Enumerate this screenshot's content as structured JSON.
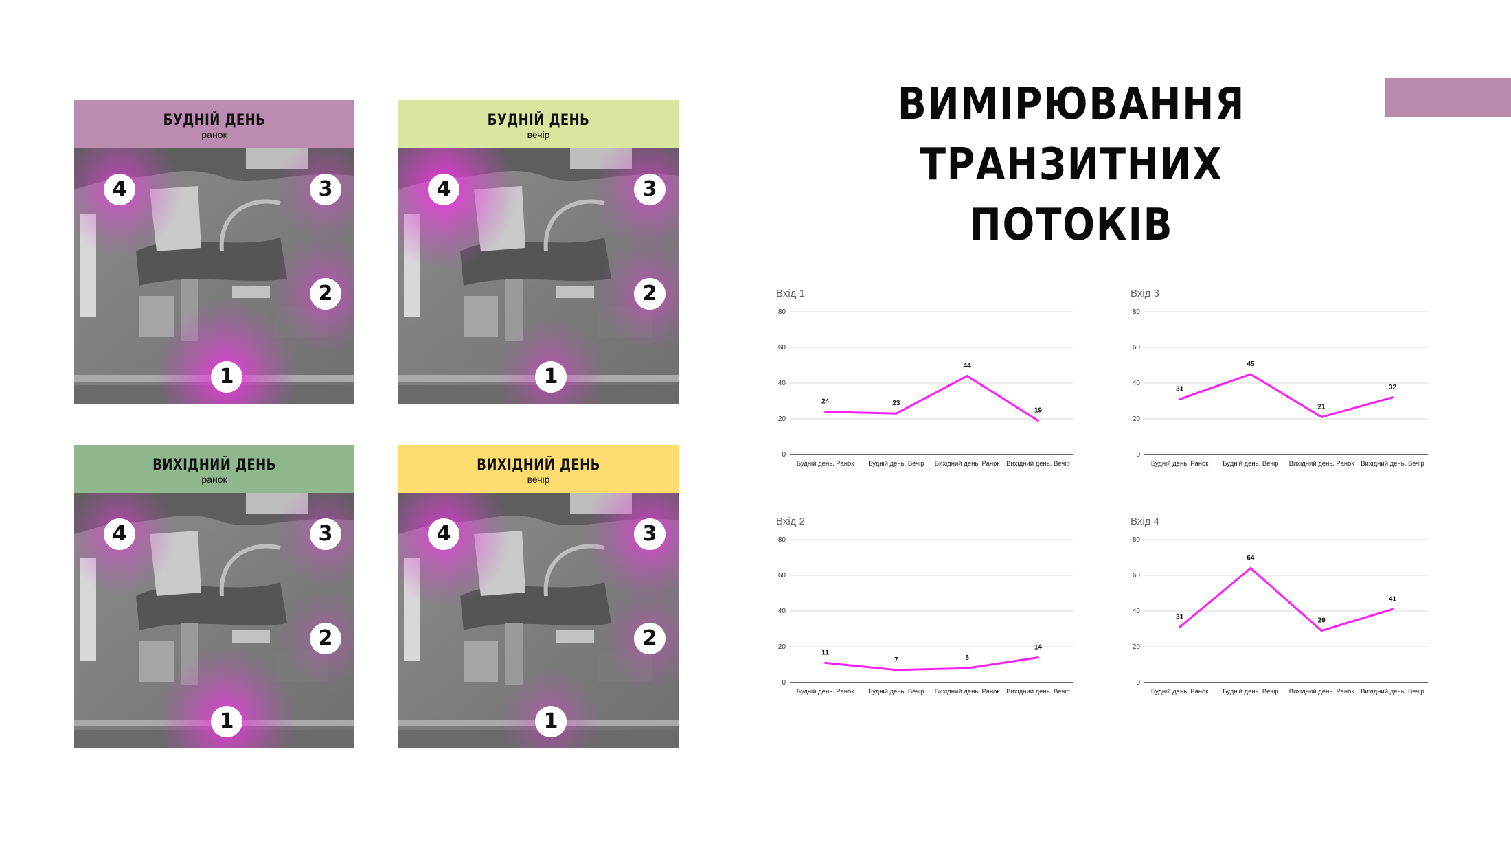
{
  "title": {
    "line1": "ВИМІРЮВАННЯ ТРАНЗИТНИХ",
    "line2": "ПОТОКІВ"
  },
  "colors": {
    "accent": "#b98aae",
    "line": "#ff1ff5",
    "grid": "#d9d9d9",
    "axis": "#333333"
  },
  "panels": [
    {
      "title": "БУДНІЙ ДЕНЬ",
      "sub": "ранок",
      "color": "#bb8bb2",
      "markers": [
        "1",
        "2",
        "3",
        "4"
      ]
    },
    {
      "title": "БУДНІЙ ДЕНЬ",
      "sub": "вечір",
      "color": "#d8e6a0",
      "markers": [
        "1",
        "2",
        "3",
        "4"
      ]
    },
    {
      "title": "ВИХІДНИЙ ДЕНЬ",
      "sub": "ранок",
      "color": "#8fb88e",
      "markers": [
        "1",
        "2",
        "3",
        "4"
      ]
    },
    {
      "title": "ВИХІДНИЙ ДЕНЬ",
      "sub": "вечір",
      "color": "#fddd6f",
      "markers": [
        "1",
        "2",
        "3",
        "4"
      ]
    }
  ],
  "chart_data": [
    {
      "type": "line",
      "title": "Вхід 1",
      "categories": [
        "Будній день. Ранок",
        "Будній день. Вечір",
        "Вихідний день. Ранок",
        "Вихідний день. Вечір"
      ],
      "values": [
        24,
        23,
        44,
        19
      ],
      "ylim": [
        0,
        80
      ],
      "yticks": [
        0,
        20,
        40,
        60,
        80
      ],
      "grid": true
    },
    {
      "type": "line",
      "title": "Вхід 3",
      "categories": [
        "Будній день. Ранок",
        "Будній день. Вечір",
        "Вихідний день. Ранок",
        "Вихідний день. Вечір"
      ],
      "values": [
        31,
        45,
        21,
        32
      ],
      "ylim": [
        0,
        80
      ],
      "yticks": [
        0,
        20,
        40,
        60,
        80
      ],
      "grid": true
    },
    {
      "type": "line",
      "title": "Вхід 2",
      "categories": [
        "Будній день. Ранок",
        "Будній день. Вечір",
        "Вихідний день. Ранок",
        "Вихідний день. Вечір"
      ],
      "values": [
        11,
        7,
        8,
        14
      ],
      "ylim": [
        0,
        80
      ],
      "yticks": [
        0,
        20,
        40,
        60,
        80
      ],
      "grid": true
    },
    {
      "type": "line",
      "title": "Вхід 4",
      "categories": [
        "Будній день. Ранок",
        "Будній день. Вечір",
        "Вихідний день. Ранок",
        "Вихідний день. Вечір"
      ],
      "values": [
        31,
        64,
        29,
        41
      ],
      "ylim": [
        0,
        80
      ],
      "yticks": [
        0,
        20,
        40,
        60,
        80
      ],
      "grid": true
    }
  ]
}
